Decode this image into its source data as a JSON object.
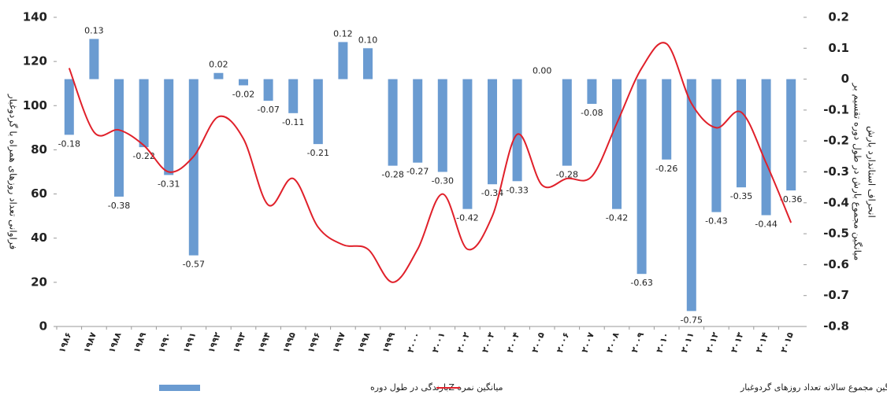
{
  "chart_data": {
    "type": "bar_line",
    "categories": [
      "۱۹۸۶",
      "۱۹۸۷",
      "۱۹۸۸",
      "۱۹۸۹",
      "۱۹۹۰",
      "۱۹۹۱",
      "۱۹۹۲",
      "۱۹۹۳",
      "۱۹۹۴",
      "۱۹۹۵",
      "۱۹۹۶",
      "۱۹۹۷",
      "۱۹۹۸",
      "۱۹۹۹",
      "۲۰۰۰",
      "۲۰۰۱",
      "۲۰۰۲",
      "۲۰۰۳",
      "۲۰۰۴",
      "۲۰۰۵",
      "۲۰۰۶",
      "۲۰۰۷",
      "۲۰۰۸",
      "۲۰۰۹",
      "۲۰۱۰",
      "۲۰۱۱",
      "۲۰۱۲",
      "۲۰۱۳",
      "۲۰۱۴",
      "۲۰۱۵"
    ],
    "series": [
      {
        "name": "میانگین نمره Zبارندگی در طول دوره",
        "kind": "bar",
        "axis": "y2",
        "color": "#6a9bd1",
        "values": [
          -0.18,
          0.13,
          -0.38,
          -0.22,
          -0.31,
          -0.57,
          0.02,
          -0.02,
          -0.07,
          -0.11,
          -0.21,
          0.12,
          0.1,
          -0.28,
          -0.27,
          -0.3,
          -0.42,
          -0.34,
          -0.33,
          0.0,
          -0.28,
          -0.08,
          -0.42,
          -0.63,
          -0.26,
          -0.75,
          -0.43,
          -0.35,
          -0.44,
          -0.36
        ],
        "value_labels": [
          "-0.18",
          "0.13",
          "-0.38",
          "-0.22",
          "-0.31",
          "-0.57",
          "0.02",
          "-0.02",
          "-0.07",
          "-0.11",
          "-0.21",
          "0.12",
          "0.10",
          "-0.28",
          "-0.27",
          "-0.30",
          "-0.42",
          "-0.34",
          "-0.33",
          "0.00",
          "-0.28",
          "-0.08",
          "-0.42",
          "-0.63",
          "-0.26",
          "-0.75",
          "-0.43",
          "-0.35",
          "-0.44",
          "-0.36"
        ]
      },
      {
        "name": "میانگین مجموع سالانه تعداد روزهای گردوغبار",
        "kind": "line",
        "axis": "y",
        "color": "#e0202a",
        "values": [
          117,
          88,
          89,
          82,
          70,
          77,
          95,
          85,
          55,
          67,
          45,
          37,
          35,
          20,
          35,
          60,
          35,
          50,
          87,
          64,
          67,
          68,
          92,
          117,
          128,
          101,
          90,
          97,
          74,
          47
        ]
      }
    ],
    "y_label": "فراوانی تعداد روزهای همراه با گردوغبار",
    "y2_label": [
      "میانگین مجموع بارش در طول دوره تقسیم بر",
      "انحراف استاندارد بارش"
    ],
    "ylim": [
      0,
      140
    ],
    "yticks": [
      0,
      20,
      40,
      60,
      80,
      100,
      120,
      140
    ],
    "y2lim": [
      -0.8,
      0.2
    ],
    "y2ticks": [
      -0.8,
      -0.7,
      -0.6,
      -0.5,
      -0.4,
      -0.3,
      -0.2,
      -0.1,
      0,
      0.1,
      0.2
    ]
  }
}
